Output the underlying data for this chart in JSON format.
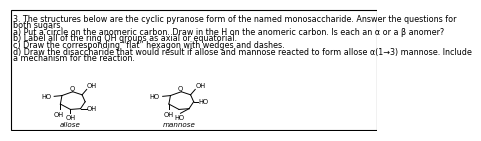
{
  "title_lines": [
    "3. The structures below are the cyclic pyranose form of the named monosaccharide. Answer the questions for",
    "both sugars.",
    "a) Put a circle on the anomeric carbon. Draw in the H on the anomeric carbon. Is each an α or a β anomer?",
    "b) Label all of the ring OH groups as axial or equatorial.",
    "c) Draw the corresponding “flat” hexagon with wedges and dashes.",
    "d) Draw the disaccharide that would result if allose and mannose reacted to form allose α(1→3) mannose. Include",
    "a mechanism for the reaction."
  ],
  "label_allose": "allose",
  "label_mannose": "mannose",
  "background_color": "#ffffff",
  "border_color": "#000000",
  "text_color": "#000000",
  "font_size": 5.8,
  "mol_font_size": 4.8,
  "lw": 0.7
}
